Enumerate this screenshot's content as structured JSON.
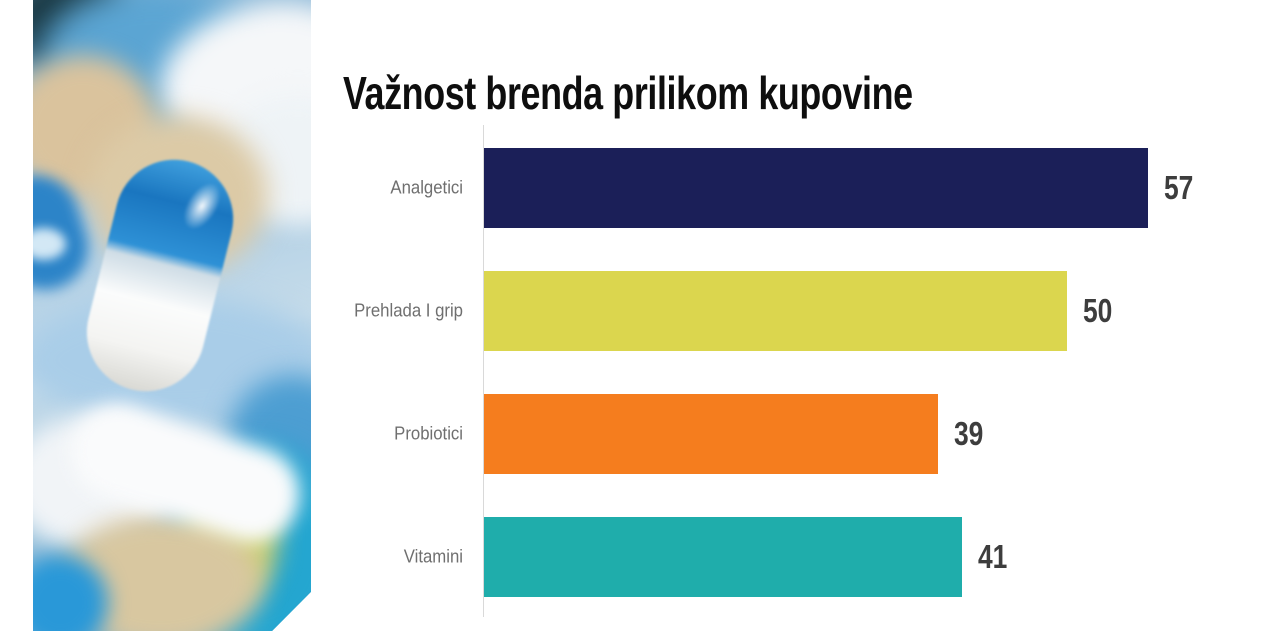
{
  "slide": {
    "background_color": "#ffffff"
  },
  "chart_data": {
    "type": "bar",
    "orientation": "horizontal",
    "title": "Važnost brenda prilikom kupovine",
    "categories": [
      "Analgetici",
      "Prehlada I grip",
      "Probiotici",
      "Vitamini"
    ],
    "values": [
      57,
      50,
      39,
      41
    ],
    "bar_colors": [
      "#1b1f58",
      "#dbd64e",
      "#f57d1e",
      "#1fadab"
    ],
    "value_labels_shown": true,
    "xlim": [
      0,
      60
    ],
    "gridlines": false,
    "legend": "none",
    "axis_line_color": "#d9d9d9",
    "category_label_color": "#6f6f6f",
    "value_label_color": "#3d3d3d",
    "title_color": "#0e0e0e"
  }
}
